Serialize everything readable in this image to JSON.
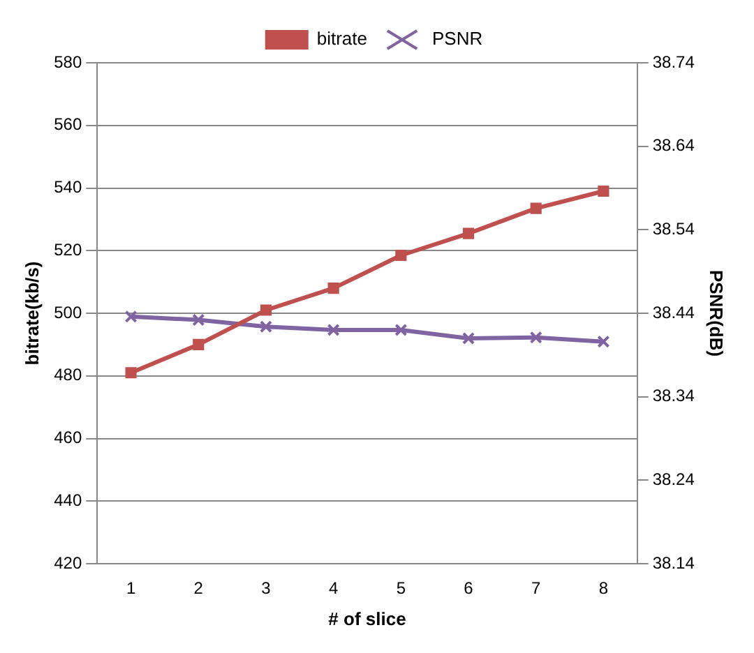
{
  "chart_data": {
    "type": "line",
    "xlabel": "# of slice",
    "ylabel": "bitrate(kb/s)",
    "y2label": "PSNR(dB)",
    "categories": [
      "1",
      "2",
      "3",
      "4",
      "5",
      "6",
      "7",
      "8"
    ],
    "series": [
      {
        "name": "bitrate",
        "color": "#c0504d",
        "marker": "square",
        "values": [
          481,
          490,
          501,
          508,
          518.5,
          525.5,
          533.5,
          539
        ]
      },
      {
        "name": "PSNR",
        "color": "#8064a2",
        "marker": "cross",
        "axis": "y2",
        "values": [
          38.436,
          38.432,
          38.424,
          38.42,
          38.42,
          38.41,
          38.411,
          38.406
        ]
      }
    ],
    "ylim": [
      420,
      580
    ],
    "yticks": [
      420,
      440,
      460,
      480,
      500,
      520,
      540,
      560,
      580
    ],
    "y2lim": [
      38.14,
      38.74
    ],
    "y2ticks": [
      {
        "value": 38.14,
        "label": "38.14"
      },
      {
        "value": 38.24,
        "label": "38.24"
      },
      {
        "value": 38.34,
        "label": "38.34"
      },
      {
        "value": 38.44,
        "label": "38.44"
      },
      {
        "value": 38.54,
        "label": "38.54"
      },
      {
        "value": 38.64,
        "label": "38.64"
      },
      {
        "value": 38.74,
        "label": "38.74"
      }
    ],
    "grid": "y",
    "legend": "top",
    "line_style": "solid"
  }
}
